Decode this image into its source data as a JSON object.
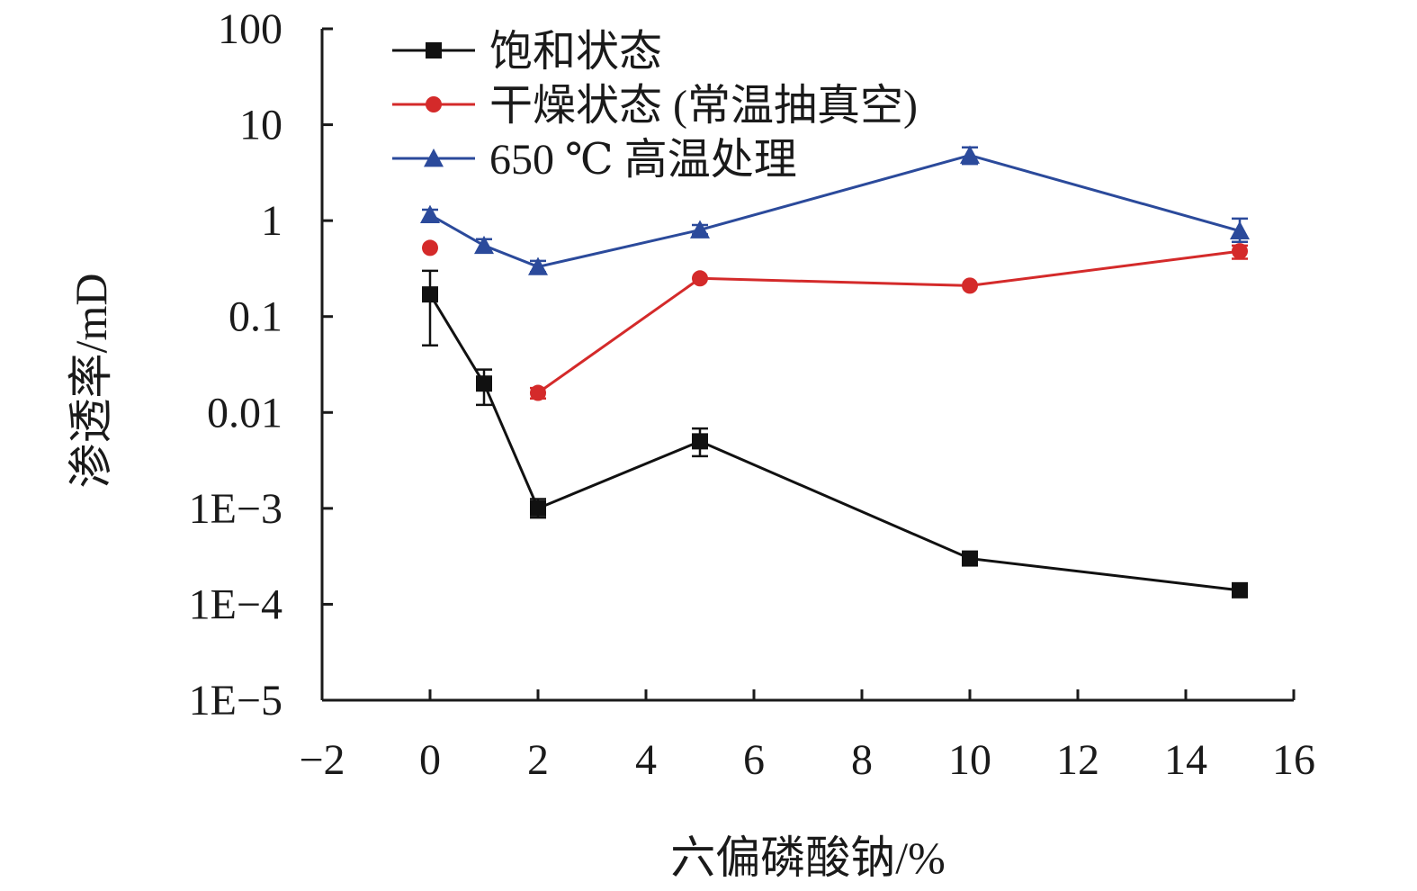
{
  "chart_data": {
    "type": "line",
    "xlabel": "六偏磷酸钠/%",
    "ylabel": "渗透率/mD",
    "x_scale": "linear",
    "y_scale": "log",
    "xlim": [
      -2,
      16
    ],
    "ylim": [
      1e-05,
      100
    ],
    "x_ticks": [
      -2,
      0,
      2,
      4,
      6,
      8,
      10,
      12,
      14,
      16
    ],
    "x_tick_labels": [
      "−2",
      "0",
      "2",
      "4",
      "6",
      "8",
      "10",
      "12",
      "14",
      "16"
    ],
    "y_ticks": [
      1e-05,
      0.0001,
      0.001,
      0.01,
      0.1,
      1,
      10,
      100
    ],
    "y_tick_labels": [
      "1E−5",
      "1E−4",
      "1E−3",
      "0.01",
      "0.1",
      "1",
      "10",
      "100"
    ],
    "grid": false,
    "legend_position": "top-left",
    "series": [
      {
        "name": "饱和状态",
        "color": "#111111",
        "marker": "square",
        "points": [
          {
            "x": 0,
            "y": 0.17,
            "err_low": 0.05,
            "err_high": 0.3
          },
          {
            "x": 1,
            "y": 0.02,
            "err_low": 0.012,
            "err_high": 0.028
          },
          {
            "x": 2,
            "y": 0.001,
            "err_low": 0.0008,
            "err_high": 0.00125
          },
          {
            "x": 5,
            "y": 0.005,
            "err_low": 0.0035,
            "err_high": 0.0068
          },
          {
            "x": 10,
            "y": 0.0003,
            "err_low": null,
            "err_high": null
          },
          {
            "x": 15,
            "y": 0.00014,
            "err_low": null,
            "err_high": null
          }
        ]
      },
      {
        "name": "干燥状态 (常温抽真空)",
        "color": "#d42a2a",
        "marker": "circle",
        "points": [
          {
            "x": 0,
            "y": 0.52,
            "err_low": null,
            "err_high": null
          },
          {
            "x": 2,
            "y": 0.016,
            "err_low": 0.014,
            "err_high": 0.018
          },
          {
            "x": 5,
            "y": 0.25,
            "err_low": null,
            "err_high": null
          },
          {
            "x": 10,
            "y": 0.21,
            "err_low": null,
            "err_high": null
          },
          {
            "x": 15,
            "y": 0.48,
            "err_low": 0.4,
            "err_high": 0.55
          }
        ],
        "line_segments": [
          [
            1,
            2,
            3,
            4
          ]
        ]
      },
      {
        "name": "650 ℃ 高温处理",
        "color": "#2b4a9b",
        "marker": "triangle",
        "points": [
          {
            "x": 0,
            "y": 1.15,
            "err_low": 1.0,
            "err_high": 1.3
          },
          {
            "x": 1,
            "y": 0.55,
            "err_low": 0.47,
            "err_high": 0.64
          },
          {
            "x": 2,
            "y": 0.33,
            "err_low": 0.29,
            "err_high": 0.38
          },
          {
            "x": 5,
            "y": 0.8,
            "err_low": 0.72,
            "err_high": 0.9
          },
          {
            "x": 10,
            "y": 4.8,
            "err_low": 3.9,
            "err_high": 5.8
          },
          {
            "x": 15,
            "y": 0.78,
            "err_low": 0.6,
            "err_high": 1.05
          }
        ]
      }
    ]
  }
}
